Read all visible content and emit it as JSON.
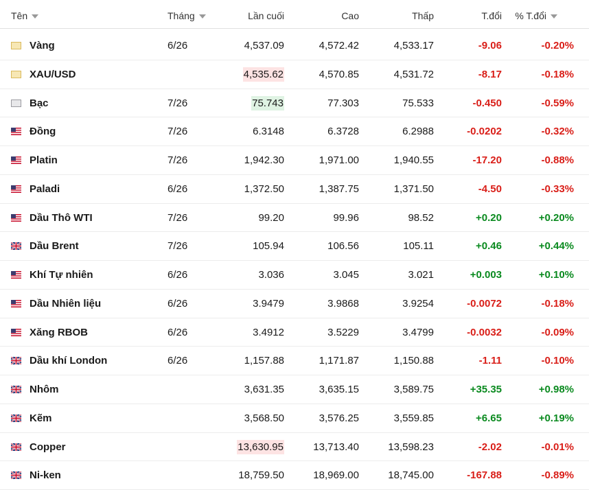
{
  "table": {
    "header": [
      "Tên",
      "Tháng",
      "Lần cuối",
      "Cao",
      "Thấp",
      "T.đổi",
      "% T.đổi"
    ],
    "rows": [
      [
        "Vàng",
        "6/26",
        "4,537.09",
        "4,572.42",
        "4,533.17",
        "-9.06",
        "-0.20%"
      ],
      [
        "XAU/USD",
        null,
        "4,535.62",
        "4,570.85",
        "4,531.72",
        "-8.17",
        "-0.18%"
      ],
      [
        "Bạc",
        "7/26",
        "75.743",
        "77.303",
        "75.533",
        "-0.450",
        "-0.59%"
      ],
      [
        "Đồng",
        "7/26",
        "6.3148",
        "6.3728",
        "6.2988",
        "-0.0202",
        "-0.32%"
      ],
      [
        "Platin",
        "7/26",
        "1,942.30",
        "1,971.00",
        "1,940.55",
        "-17.20",
        "-0.88%"
      ],
      [
        "Paladi",
        "6/26",
        "1,372.50",
        "1,387.75",
        "1,371.50",
        "-4.50",
        "-0.33%"
      ],
      [
        "Dầu Thô WTI",
        "7/26",
        "99.20",
        "99.96",
        "98.52",
        "+0.20",
        "+0.20%"
      ],
      [
        "Dầu Brent",
        "7/26",
        "105.94",
        "106.56",
        "105.11",
        "+0.46",
        "+0.44%"
      ],
      [
        "Khí Tự nhiên",
        "6/26",
        "3.036",
        "3.045",
        "3.021",
        "+0.003",
        "+0.10%"
      ],
      [
        "Dầu Nhiên liệu",
        "6/26",
        "3.9479",
        "3.9868",
        "3.9254",
        "-0.0072",
        "-0.18%"
      ],
      [
        "Xăng RBOB",
        "6/26",
        "3.4912",
        "3.5229",
        "3.4799",
        "-0.0032",
        "-0.09%"
      ],
      [
        "Dầu khí London",
        "6/26",
        "1,157.88",
        "1,171.87",
        "1,150.88",
        "-1.11",
        "-0.10%"
      ],
      [
        "Nhôm",
        null,
        "3,631.35",
        "3,635.15",
        "3,589.75",
        "+35.35",
        "+0.98%"
      ],
      [
        "Kẽm",
        null,
        "3,568.50",
        "3,576.25",
        "3,559.85",
        "+6.65",
        "+0.19%"
      ],
      [
        "Copper",
        null,
        "13,630.95",
        "13,713.40",
        "13,598.23",
        "-2.02",
        "-0.01%"
      ],
      [
        "Ni-ken",
        null,
        "18,759.50",
        "18,969.00",
        "18,745.00",
        "-167.88",
        "-0.89%"
      ]
    ]
  }
}
